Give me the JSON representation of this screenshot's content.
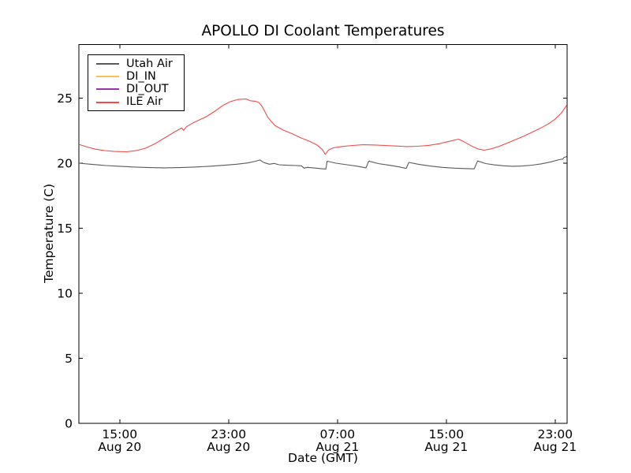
{
  "chart_data": {
    "type": "line",
    "title": "APOLLO DI Coolant Temperatures",
    "xlabel": "Date (GMT)",
    "ylabel": "Temperature (C)",
    "x_hours_origin": "t=0 at left edge, ticks anchored so t=3 is 15:00 Aug 20",
    "xlim_hours": [
      0,
      35.88
    ],
    "ylim": [
      0,
      29.12
    ],
    "y_ticks": [
      0,
      5,
      10,
      15,
      20,
      25
    ],
    "x_ticks": [
      {
        "t": 3,
        "time": "15:00",
        "date": "Aug 20"
      },
      {
        "t": 11,
        "time": "23:00",
        "date": "Aug 20"
      },
      {
        "t": 19,
        "time": "07:00",
        "date": "Aug 21"
      },
      {
        "t": 27,
        "time": "15:00",
        "date": "Aug 21"
      },
      {
        "t": 35,
        "time": "23:00",
        "date": "Aug 21"
      }
    ],
    "grid": false,
    "legend": {
      "position": "upper left",
      "border": true
    },
    "axis_color": "#000000",
    "series": [
      {
        "name": "Utah Air",
        "color": "#5a5a5a",
        "visible": true,
        "points": [
          [
            0,
            20.0
          ],
          [
            1.0,
            19.9
          ],
          [
            2.0,
            19.82
          ],
          [
            3.0,
            19.76
          ],
          [
            4.1,
            19.7
          ],
          [
            5.2,
            19.66
          ],
          [
            6.3,
            19.64
          ],
          [
            7.4,
            19.66
          ],
          [
            8.5,
            19.7
          ],
          [
            9.6,
            19.76
          ],
          [
            10.7,
            19.84
          ],
          [
            11.6,
            19.92
          ],
          [
            12.4,
            20.02
          ],
          [
            13.0,
            20.15
          ],
          [
            13.3,
            20.25
          ],
          [
            13.6,
            20.05
          ],
          [
            14.0,
            19.92
          ],
          [
            14.35,
            19.98
          ],
          [
            14.7,
            19.88
          ],
          [
            15.3,
            19.84
          ],
          [
            16.0,
            19.82
          ],
          [
            16.35,
            19.8
          ],
          [
            16.55,
            19.62
          ],
          [
            16.8,
            19.68
          ],
          [
            17.3,
            19.63
          ],
          [
            17.8,
            19.58
          ],
          [
            18.15,
            19.55
          ],
          [
            18.25,
            20.15
          ],
          [
            18.9,
            20.0
          ],
          [
            19.7,
            19.88
          ],
          [
            20.5,
            19.76
          ],
          [
            21.1,
            19.64
          ],
          [
            21.3,
            20.16
          ],
          [
            22.0,
            19.97
          ],
          [
            22.8,
            19.84
          ],
          [
            23.5,
            19.72
          ],
          [
            24.05,
            19.6
          ],
          [
            24.25,
            20.06
          ],
          [
            25.0,
            19.9
          ],
          [
            25.8,
            19.78
          ],
          [
            26.7,
            19.68
          ],
          [
            27.6,
            19.62
          ],
          [
            28.5,
            19.58
          ],
          [
            29.05,
            19.56
          ],
          [
            29.3,
            20.17
          ],
          [
            29.9,
            19.97
          ],
          [
            30.5,
            19.87
          ],
          [
            31.2,
            19.8
          ],
          [
            31.9,
            19.76
          ],
          [
            32.6,
            19.78
          ],
          [
            33.3,
            19.85
          ],
          [
            34.0,
            19.95
          ],
          [
            34.7,
            20.1
          ],
          [
            35.3,
            20.27
          ],
          [
            35.58,
            20.32
          ],
          [
            35.65,
            20.45
          ],
          [
            35.85,
            20.5
          ]
        ]
      },
      {
        "name": "DI_IN",
        "color": "#fdbe57",
        "visible": false,
        "points": []
      },
      {
        "name": "DI_OUT",
        "color": "#9935ad",
        "visible": false,
        "points": []
      },
      {
        "name": "ILE Air",
        "color": "#f04c4c",
        "visible": true,
        "points": [
          [
            0,
            21.45
          ],
          [
            0.6,
            21.25
          ],
          [
            1.2,
            21.08
          ],
          [
            1.9,
            20.97
          ],
          [
            2.6,
            20.9
          ],
          [
            3.5,
            20.88
          ],
          [
            4.2,
            20.96
          ],
          [
            4.9,
            21.15
          ],
          [
            5.6,
            21.5
          ],
          [
            6.4,
            22.0
          ],
          [
            7.1,
            22.45
          ],
          [
            7.55,
            22.7
          ],
          [
            7.7,
            22.52
          ],
          [
            7.9,
            22.8
          ],
          [
            8.4,
            23.1
          ],
          [
            8.9,
            23.35
          ],
          [
            9.4,
            23.6
          ],
          [
            10.0,
            24.0
          ],
          [
            10.6,
            24.45
          ],
          [
            11.1,
            24.72
          ],
          [
            11.7,
            24.9
          ],
          [
            12.3,
            24.93
          ],
          [
            12.6,
            24.8
          ],
          [
            13.0,
            24.75
          ],
          [
            13.25,
            24.65
          ],
          [
            13.5,
            24.3
          ],
          [
            13.9,
            23.5
          ],
          [
            14.4,
            22.9
          ],
          [
            15.0,
            22.55
          ],
          [
            15.7,
            22.25
          ],
          [
            16.3,
            21.95
          ],
          [
            16.9,
            21.7
          ],
          [
            17.5,
            21.4
          ],
          [
            17.9,
            21.05
          ],
          [
            18.1,
            20.68
          ],
          [
            18.35,
            21.02
          ],
          [
            18.7,
            21.18
          ],
          [
            19.3,
            21.28
          ],
          [
            20.1,
            21.36
          ],
          [
            20.9,
            21.42
          ],
          [
            21.7,
            21.4
          ],
          [
            22.5,
            21.36
          ],
          [
            23.3,
            21.32
          ],
          [
            24.1,
            21.28
          ],
          [
            24.9,
            21.3
          ],
          [
            25.7,
            21.37
          ],
          [
            26.4,
            21.48
          ],
          [
            27.1,
            21.65
          ],
          [
            27.9,
            21.85
          ],
          [
            28.3,
            21.65
          ],
          [
            28.8,
            21.35
          ],
          [
            29.3,
            21.1
          ],
          [
            29.8,
            21.0
          ],
          [
            30.3,
            21.1
          ],
          [
            30.9,
            21.3
          ],
          [
            31.5,
            21.55
          ],
          [
            32.1,
            21.82
          ],
          [
            32.7,
            22.08
          ],
          [
            33.3,
            22.38
          ],
          [
            33.9,
            22.68
          ],
          [
            34.5,
            23.02
          ],
          [
            35.0,
            23.38
          ],
          [
            35.45,
            23.85
          ],
          [
            35.85,
            24.45
          ]
        ]
      }
    ]
  }
}
